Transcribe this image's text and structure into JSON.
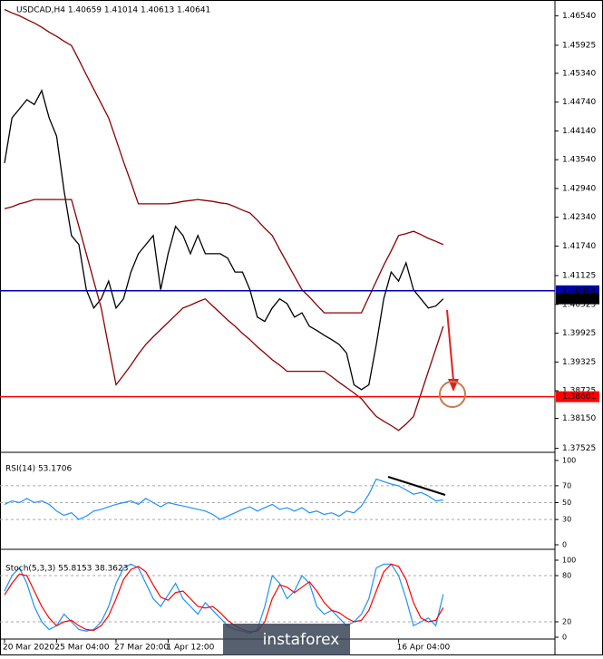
{
  "chart_data": [
    {
      "type": "line",
      "title": "USDCAD,H4  1.40659 1.41014 1.40613 1.40641",
      "categories": [
        "20 Mar 2020",
        null,
        null,
        null,
        null,
        null,
        null,
        "25 Mar 04:00",
        null,
        null,
        null,
        null,
        null,
        null,
        null,
        "27 Mar 20:00",
        null,
        null,
        null,
        null,
        null,
        null,
        "1 Apr 12:00",
        null,
        null,
        null,
        null,
        null,
        null,
        null,
        null,
        null,
        null,
        null,
        null,
        null,
        null,
        null,
        null,
        null,
        null,
        null,
        null,
        null,
        null,
        null,
        null,
        null,
        null,
        null,
        null,
        null,
        null,
        "16 Apr 04:00",
        null,
        null,
        null,
        null,
        null,
        null
      ],
      "series": [
        {
          "color": "#000000",
          "values": [
            1.4347,
            1.4441,
            1.446,
            1.4479,
            1.4469,
            1.4498,
            1.4441,
            1.4403,
            1.429,
            1.4196,
            1.4177,
            1.4083,
            1.4045,
            1.4064,
            1.4101,
            1.4045,
            1.4064,
            1.412,
            1.4158,
            1.4177,
            1.4196,
            1.4083,
            1.4158,
            1.4215,
            1.4196,
            1.4158,
            1.4196,
            1.4158,
            1.4158,
            1.4158,
            1.4149,
            1.412,
            1.412,
            1.4083,
            1.4026,
            1.4017,
            1.4045,
            1.4064,
            1.4054,
            1.4026,
            1.4035,
            1.4007,
            1.3998,
            1.3988,
            1.3979,
            1.3969,
            1.3951,
            1.3885,
            1.3875,
            1.3885,
            1.3969,
            1.4064,
            1.412,
            1.4101,
            1.4139,
            1.4083,
            1.4064,
            1.4045,
            1.4049,
            1.4064
          ]
        },
        {
          "color": "#8b0000",
          "values": [
            1.4667,
            1.466,
            1.4654,
            1.4646,
            1.4639,
            1.463,
            1.462,
            1.4611,
            1.4601,
            1.4592,
            1.4562,
            1.4531,
            1.4501,
            1.4471,
            1.4441,
            1.4396,
            1.435,
            1.4307,
            1.4262,
            1.4262,
            1.4262,
            1.4262,
            1.4262,
            1.4264,
            1.4267,
            1.4269,
            1.4271,
            1.4269,
            1.4267,
            1.4264,
            1.4262,
            1.4256,
            1.4249,
            1.4243,
            1.4228,
            1.4211,
            1.4196,
            1.4167,
            1.4139,
            1.4111,
            1.4083,
            1.4068,
            1.4051,
            1.4035,
            1.4035,
            1.4035,
            1.4035,
            1.4035,
            1.4035,
            1.4068,
            1.4101,
            1.4134,
            1.4164,
            1.4196,
            1.42,
            1.4205,
            1.4198,
            1.419,
            1.4184,
            1.4177
          ]
        },
        {
          "color": "#8b0000",
          "values": [
            1.4252,
            1.4256,
            1.4262,
            1.4266,
            1.4271,
            1.4271,
            1.4271,
            1.4271,
            1.4271,
            1.4271,
            1.4215,
            1.4158,
            1.4101,
            1.4045,
            1.3964,
            1.3885,
            1.3905,
            1.3926,
            1.3949,
            1.3969,
            1.3985,
            1.4,
            1.4015,
            1.403,
            1.4045,
            1.4051,
            1.4058,
            1.4064,
            1.4049,
            1.4035,
            1.402,
            1.4007,
            1.3992,
            1.3979,
            1.3964,
            1.3951,
            1.3937,
            1.3926,
            1.3913,
            1.3913,
            1.3913,
            1.3913,
            1.3913,
            1.3913,
            1.3902,
            1.389,
            1.3879,
            1.3868,
            1.3856,
            1.3837,
            1.3819,
            1.3809,
            1.38,
            1.379,
            1.3803,
            1.3819,
            1.3866,
            1.3913,
            1.396,
            1.4007
          ]
        }
      ],
      "hlines": [
        {
          "value": 1.40808,
          "color": "#0000aa"
        },
        {
          "value": 1.38601,
          "color": "#ff0000"
        },
        {
          "value": 1.40641,
          "color": "#000000"
        }
      ],
      "ylim": [
        1.3748,
        1.4683
      ],
      "yticks": [
        {
          "value": 1.4654,
          "label": "1.46540"
        },
        1.45925,
        {
          "value": 1.4534,
          "label": "1.45340"
        },
        {
          "value": 1.4474,
          "label": "1.44740"
        },
        {
          "value": 1.4414,
          "label": "1.44140"
        },
        {
          "value": 1.4354,
          "label": "1.43540"
        },
        {
          "value": 1.4294,
          "label": "1.42940"
        },
        {
          "value": 1.4234,
          "label": "1.42340"
        },
        {
          "value": 1.4174,
          "label": "1.41740"
        },
        1.41125,
        1.40525,
        1.39925,
        1.39325,
        1.38725,
        {
          "value": 1.3815,
          "label": "1.38150"
        },
        1.37525
      ],
      "watermark": "instaforex"
    },
    {
      "type": "line",
      "title": "RSI(14) 53.1706",
      "series": [
        {
          "color": "#1e90ff",
          "values": [
            48,
            52,
            50,
            55,
            50,
            52,
            48,
            40,
            35,
            38,
            30,
            34,
            40,
            42,
            45,
            48,
            50,
            52,
            48,
            55,
            50,
            45,
            50,
            48,
            46,
            44,
            42,
            40,
            36,
            30,
            34,
            38,
            42,
            45,
            40,
            44,
            48,
            42,
            44,
            40,
            44,
            38,
            40,
            36,
            38,
            34,
            40,
            38,
            46,
            60,
            78,
            75,
            72,
            70,
            65,
            60,
            62,
            58,
            52,
            53.1706
          ]
        }
      ],
      "ylim": [
        0,
        100
      ],
      "yticks": [
        100,
        70,
        50,
        30,
        0
      ],
      "levels": [
        70,
        50,
        30
      ]
    },
    {
      "type": "line",
      "title": "Stoch(5,3,3) 55.8153 38.3623",
      "series": [
        {
          "color": "#1e90ff",
          "values": [
            60,
            80,
            90,
            70,
            40,
            20,
            10,
            15,
            30,
            20,
            10,
            8,
            10,
            20,
            40,
            70,
            90,
            95,
            90,
            70,
            50,
            40,
            55,
            70,
            50,
            40,
            30,
            45,
            35,
            25,
            15,
            10,
            8,
            5,
            10,
            40,
            80,
            70,
            50,
            60,
            80,
            70,
            40,
            30,
            35,
            25,
            15,
            20,
            30,
            50,
            90,
            95,
            95,
            80,
            50,
            15,
            20,
            25,
            15,
            55.8153
          ]
        },
        {
          "color": "#ff0000",
          "values": [
            55,
            70,
            82,
            80,
            60,
            40,
            25,
            15,
            20,
            22,
            15,
            10,
            9,
            15,
            28,
            50,
            75,
            88,
            92,
            85,
            68,
            52,
            48,
            58,
            60,
            50,
            40,
            38,
            40,
            32,
            22,
            15,
            10,
            7,
            8,
            20,
            50,
            68,
            65,
            58,
            65,
            72,
            60,
            45,
            35,
            32,
            25,
            20,
            22,
            35,
            60,
            85,
            95,
            92,
            75,
            45,
            25,
            20,
            22,
            38.3623
          ]
        }
      ],
      "ylim": [
        0,
        100
      ],
      "yticks": [
        100,
        80,
        20,
        0
      ],
      "levels": [
        80,
        20
      ]
    }
  ]
}
